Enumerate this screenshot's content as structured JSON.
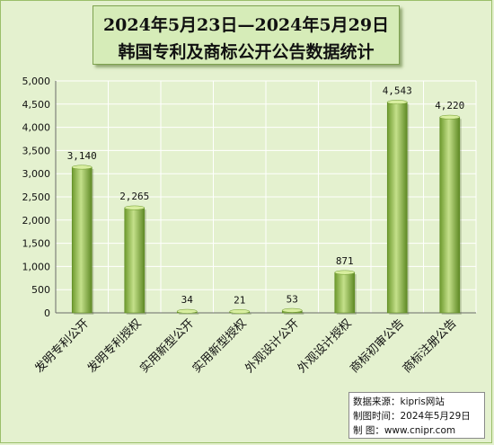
{
  "chart_data": {
    "type": "bar",
    "title_line1": "2024年5月23日—2024年5月29日",
    "title_line2": "韩国专利及商标公开公告数据统计",
    "categories": [
      "发明专利公开",
      "发明专利授权",
      "实用新型公开",
      "实用新型授权",
      "外观设计公开",
      "外观设计授权",
      "商标初审公告",
      "商标注册公告"
    ],
    "values": [
      3140,
      2265,
      34,
      21,
      53,
      871,
      4543,
      4220
    ],
    "value_labels": [
      "3,140",
      "2,265",
      "34",
      "21",
      "53",
      "871",
      "4,543",
      "4,220"
    ],
    "ylim": [
      0,
      5000
    ],
    "yticks": [
      0,
      500,
      1000,
      1500,
      2000,
      2500,
      3000,
      3500,
      4000,
      4500,
      5000
    ],
    "ytick_labels": [
      "0",
      "500",
      "1,000",
      "1,500",
      "2,000",
      "2,500",
      "3,000",
      "3,500",
      "4,000",
      "4,500",
      "5,000"
    ],
    "grid": true,
    "legend": "none",
    "colors": {
      "background": "#e4f1cf",
      "bar_light": "#c4e08a",
      "bar_mid": "#8fbc45",
      "bar_dark": "#5f8a25",
      "grid": "#ffffff",
      "axis": "#6a6a6a"
    }
  },
  "source": {
    "line1": "数据来源：kipris网站",
    "line2": "制图时间：2024年5月29日",
    "line3": "制      图：www.cnipr.com"
  }
}
